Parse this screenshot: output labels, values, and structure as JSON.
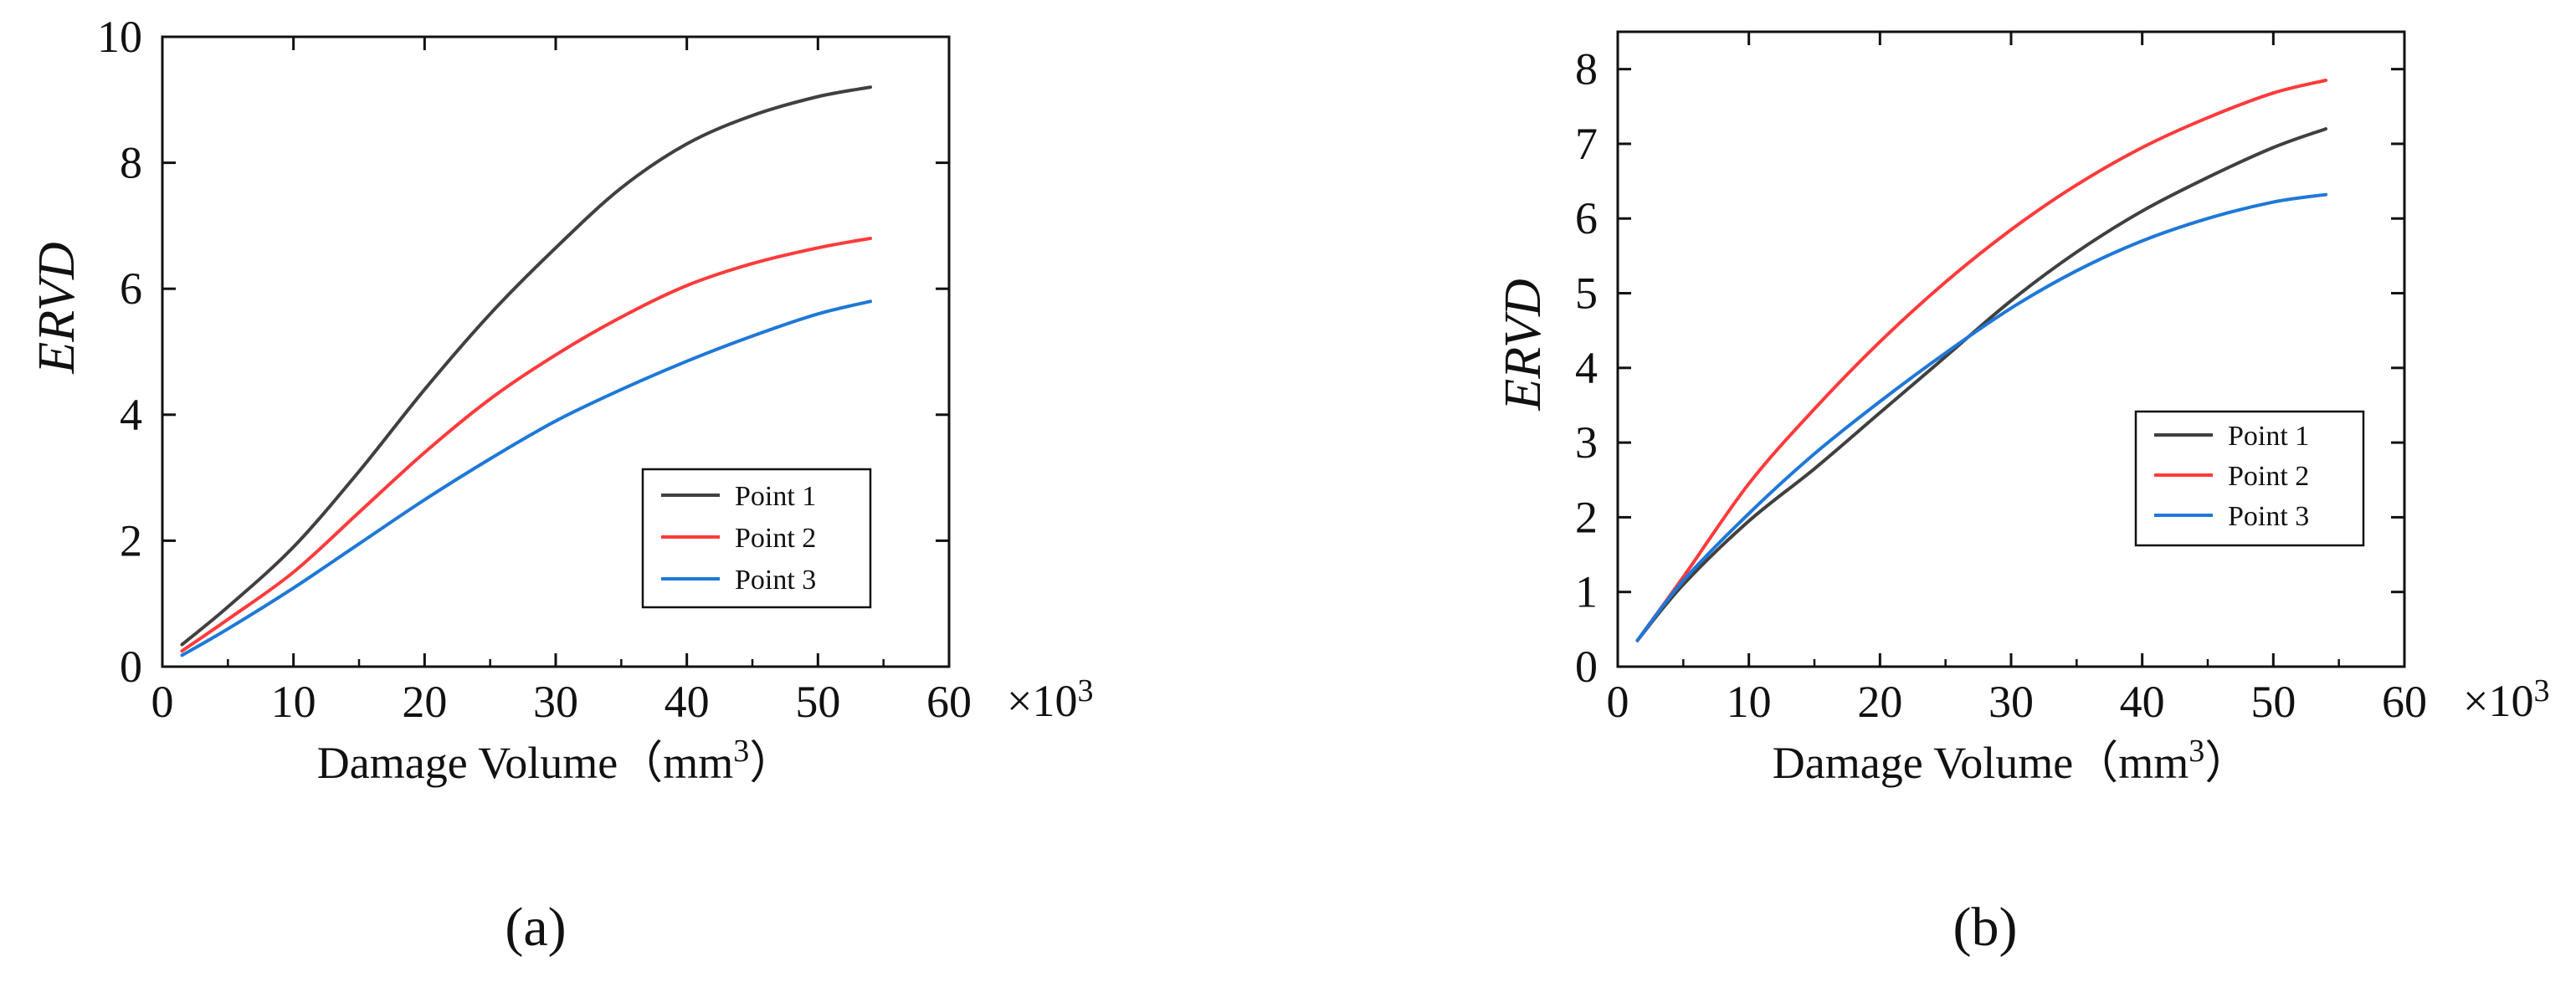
{
  "chart_data": [
    {
      "type": "line",
      "xlabel": "Damage Volume（mm",
      "xlabel_sup": "3",
      "xlabel_end": "）",
      "x_multiplier": "×10",
      "x_multiplier_sup": "3",
      "ylabel": "ERVD",
      "xlim": [
        0,
        60
      ],
      "ylim": [
        0,
        10
      ],
      "xticks": [
        0,
        10,
        20,
        30,
        40,
        50,
        60
      ],
      "yticks": [
        0,
        2,
        4,
        6,
        8,
        10
      ],
      "legend_position": "lower-right",
      "grid": false,
      "panel_label": "(a)",
      "series": [
        {
          "name": "Point 1",
          "color": "#404040",
          "x": [
            1.5,
            5,
            10,
            15,
            20,
            25,
            30,
            35,
            40,
            45,
            50,
            54
          ],
          "y": [
            0.35,
            0.95,
            1.9,
            3.1,
            4.4,
            5.6,
            6.65,
            7.6,
            8.3,
            8.75,
            9.05,
            9.2
          ]
        },
        {
          "name": "Point 2",
          "color": "#ff3b3b",
          "x": [
            1.5,
            5,
            10,
            15,
            20,
            25,
            30,
            35,
            40,
            45,
            50,
            54
          ],
          "y": [
            0.25,
            0.75,
            1.5,
            2.45,
            3.4,
            4.25,
            4.95,
            5.55,
            6.05,
            6.4,
            6.65,
            6.8
          ]
        },
        {
          "name": "Point 3",
          "color": "#1e78d8",
          "x": [
            1.5,
            5,
            10,
            15,
            20,
            25,
            30,
            35,
            40,
            45,
            50,
            54
          ],
          "y": [
            0.18,
            0.6,
            1.25,
            1.95,
            2.65,
            3.3,
            3.9,
            4.4,
            4.85,
            5.25,
            5.6,
            5.8
          ]
        }
      ]
    },
    {
      "type": "line",
      "xlabel": "Damage Volume（mm",
      "xlabel_sup": "3",
      "xlabel_end": "）",
      "x_multiplier": "×10",
      "x_multiplier_sup": "3",
      "ylabel": "ERVD",
      "xlim": [
        0,
        60
      ],
      "ylim": [
        0,
        8.5
      ],
      "xticks": [
        0,
        10,
        20,
        30,
        40,
        50,
        60
      ],
      "yticks": [
        0,
        1,
        2,
        3,
        4,
        5,
        6,
        7,
        8
      ],
      "legend_position": "middle-right",
      "grid": false,
      "panel_label": "(b)",
      "series": [
        {
          "name": "Point 1",
          "color": "#404040",
          "x": [
            1.5,
            5,
            10,
            15,
            20,
            25,
            30,
            35,
            40,
            45,
            50,
            54
          ],
          "y": [
            0.35,
            1.1,
            1.95,
            2.65,
            3.4,
            4.15,
            4.9,
            5.55,
            6.1,
            6.55,
            6.95,
            7.2
          ]
        },
        {
          "name": "Point 2",
          "color": "#ff3b3b",
          "x": [
            1.5,
            5,
            10,
            15,
            20,
            25,
            30,
            35,
            40,
            45,
            50,
            54
          ],
          "y": [
            0.35,
            1.2,
            2.45,
            3.45,
            4.35,
            5.15,
            5.85,
            6.45,
            6.95,
            7.35,
            7.68,
            7.85
          ]
        },
        {
          "name": "Point 3",
          "color": "#1e78d8",
          "x": [
            1.5,
            5,
            10,
            15,
            20,
            25,
            30,
            35,
            40,
            45,
            50,
            54
          ],
          "y": [
            0.35,
            1.15,
            2.05,
            2.85,
            3.55,
            4.2,
            4.8,
            5.3,
            5.7,
            6.0,
            6.22,
            6.32
          ]
        }
      ]
    }
  ]
}
